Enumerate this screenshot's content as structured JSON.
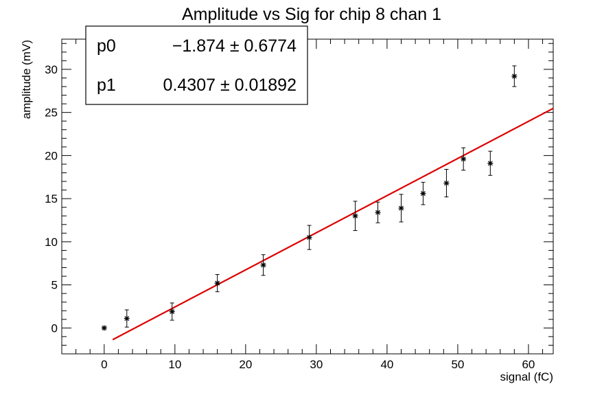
{
  "chart_data": {
    "type": "scatter",
    "title": "Amplitude vs Sig for chip 8 chan 1",
    "xlabel": "signal (fC)",
    "ylabel": "amplitude (mV)",
    "xlim": [
      -6,
      63.5
    ],
    "ylim": [
      -3,
      33.5
    ],
    "x_ticks": [
      0,
      10,
      20,
      30,
      40,
      50,
      60
    ],
    "y_ticks": [
      0,
      5,
      10,
      15,
      20,
      25,
      30
    ],
    "grid": false,
    "points": [
      {
        "x": 0.0,
        "y": 0.0,
        "err": 0.0
      },
      {
        "x": 3.2,
        "y": 1.1,
        "err": 1.0
      },
      {
        "x": 9.6,
        "y": 1.9,
        "err": 1.0
      },
      {
        "x": 16.0,
        "y": 5.2,
        "err": 1.0
      },
      {
        "x": 22.5,
        "y": 7.3,
        "err": 1.2
      },
      {
        "x": 29.0,
        "y": 10.5,
        "err": 1.4
      },
      {
        "x": 35.5,
        "y": 13.0,
        "err": 1.7
      },
      {
        "x": 38.7,
        "y": 13.4,
        "err": 1.2
      },
      {
        "x": 42.0,
        "y": 13.9,
        "err": 1.6
      },
      {
        "x": 45.1,
        "y": 15.6,
        "err": 1.3
      },
      {
        "x": 48.4,
        "y": 16.8,
        "err": 1.6
      },
      {
        "x": 50.8,
        "y": 19.6,
        "err": 1.3
      },
      {
        "x": 54.6,
        "y": 19.1,
        "err": 1.4
      },
      {
        "x": 58.0,
        "y": 29.2,
        "err": 1.2
      }
    ],
    "fit": {
      "type": "linear",
      "p0": -1.874,
      "p1": 0.4307,
      "x_range": [
        1.2,
        63.5
      ],
      "color": "#dd0000"
    },
    "stats_box": {
      "rows": [
        {
          "name": "p0",
          "value": "−1.874 ± 0.6774"
        },
        {
          "name": "p1",
          "value": "0.4307 ± 0.01892"
        }
      ]
    },
    "marker_color": "#000000"
  }
}
